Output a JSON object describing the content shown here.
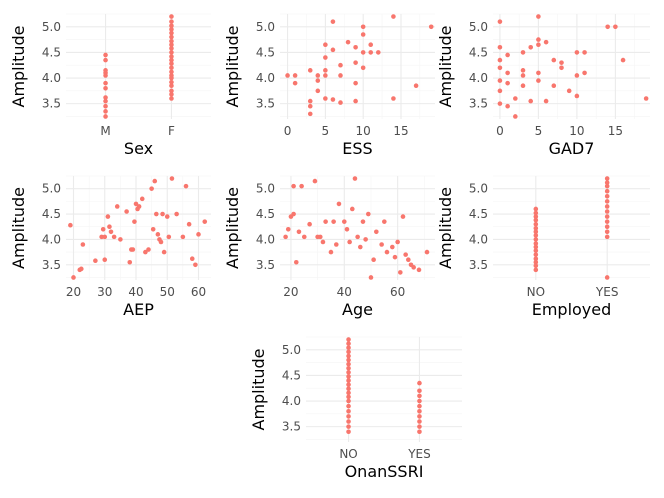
{
  "figure": {
    "point_color": "#F8766D",
    "grid_major_color": "#ebebeb",
    "grid_minor_color": "#f5f5f5",
    "background": "#ffffff"
  },
  "chart_data": [
    {
      "id": "sex",
      "type": "scatter",
      "xtype": "categorical",
      "xlabel": "Sex",
      "ylabel": "Amplitude",
      "categories": [
        "M",
        "F"
      ],
      "yticks": [
        "3.5",
        "4.0",
        "4.5",
        "5.0"
      ],
      "ylim": [
        3.2,
        5.25
      ],
      "points": [
        {
          "x": "M",
          "y": 3.25
        },
        {
          "x": "M",
          "y": 3.35
        },
        {
          "x": "M",
          "y": 3.45
        },
        {
          "x": "M",
          "y": 3.55
        },
        {
          "x": "M",
          "y": 3.62
        },
        {
          "x": "M",
          "y": 3.8
        },
        {
          "x": "M",
          "y": 3.9
        },
        {
          "x": "M",
          "y": 4.05
        },
        {
          "x": "M",
          "y": 4.1
        },
        {
          "x": "M",
          "y": 4.15
        },
        {
          "x": "M",
          "y": 4.35
        },
        {
          "x": "M",
          "y": 4.45
        },
        {
          "x": "F",
          "y": 3.6
        },
        {
          "x": "F",
          "y": 3.68
        },
        {
          "x": "F",
          "y": 3.75
        },
        {
          "x": "F",
          "y": 3.85
        },
        {
          "x": "F",
          "y": 3.92
        },
        {
          "x": "F",
          "y": 4.0
        },
        {
          "x": "F",
          "y": 4.05
        },
        {
          "x": "F",
          "y": 4.12
        },
        {
          "x": "F",
          "y": 4.2
        },
        {
          "x": "F",
          "y": 4.28
        },
        {
          "x": "F",
          "y": 4.35
        },
        {
          "x": "F",
          "y": 4.42
        },
        {
          "x": "F",
          "y": 4.5
        },
        {
          "x": "F",
          "y": 4.58
        },
        {
          "x": "F",
          "y": 4.65
        },
        {
          "x": "F",
          "y": 4.72
        },
        {
          "x": "F",
          "y": 4.8
        },
        {
          "x": "F",
          "y": 4.88
        },
        {
          "x": "F",
          "y": 4.95
        },
        {
          "x": "F",
          "y": 5.02
        },
        {
          "x": "F",
          "y": 5.1
        },
        {
          "x": "F",
          "y": 5.2
        }
      ]
    },
    {
      "id": "ess",
      "type": "scatter",
      "xtype": "numeric",
      "xlabel": "ESS",
      "ylabel": "Amplitude",
      "xlim": [
        -1,
        19.5
      ],
      "xticks": [
        0,
        5,
        10,
        15
      ],
      "yticks": [
        "3.5",
        "4.0",
        "4.5",
        "5.0"
      ],
      "ylim": [
        3.2,
        5.25
      ],
      "points": [
        {
          "x": 0,
          "y": 4.05
        },
        {
          "x": 1,
          "y": 4.05
        },
        {
          "x": 1,
          "y": 3.9
        },
        {
          "x": 3,
          "y": 3.55
        },
        {
          "x": 3,
          "y": 3.45
        },
        {
          "x": 3,
          "y": 3.3
        },
        {
          "x": 3,
          "y": 4.15
        },
        {
          "x": 4,
          "y": 4.05
        },
        {
          "x": 4,
          "y": 3.95
        },
        {
          "x": 4,
          "y": 3.75
        },
        {
          "x": 5,
          "y": 3.6
        },
        {
          "x": 5,
          "y": 4.05
        },
        {
          "x": 5,
          "y": 4.15
        },
        {
          "x": 5,
          "y": 4.4
        },
        {
          "x": 5,
          "y": 4.65
        },
        {
          "x": 6,
          "y": 5.1
        },
        {
          "x": 6,
          "y": 4.55
        },
        {
          "x": 6,
          "y": 3.58
        },
        {
          "x": 7,
          "y": 4.25
        },
        {
          "x": 7,
          "y": 4.05
        },
        {
          "x": 7,
          "y": 3.52
        },
        {
          "x": 8,
          "y": 4.7
        },
        {
          "x": 9,
          "y": 4.6
        },
        {
          "x": 9,
          "y": 3.9
        },
        {
          "x": 9,
          "y": 3.55
        },
        {
          "x": 9,
          "y": 4.3
        },
        {
          "x": 10,
          "y": 5.0
        },
        {
          "x": 10,
          "y": 4.85
        },
        {
          "x": 10,
          "y": 4.5
        },
        {
          "x": 10,
          "y": 4.2
        },
        {
          "x": 11,
          "y": 4.65
        },
        {
          "x": 11,
          "y": 4.5
        },
        {
          "x": 12,
          "y": 4.5
        },
        {
          "x": 14,
          "y": 5.2
        },
        {
          "x": 14,
          "y": 3.6
        },
        {
          "x": 17,
          "y": 3.85
        },
        {
          "x": 19,
          "y": 5.0
        }
      ]
    },
    {
      "id": "gad7",
      "type": "scatter",
      "xtype": "numeric",
      "xlabel": "GAD7",
      "ylabel": "Amplitude",
      "xlim": [
        -0.9,
        19.5
      ],
      "xticks": [
        0,
        5,
        10,
        15
      ],
      "yticks": [
        "3.5",
        "4.0",
        "4.5",
        "5.0"
      ],
      "ylim": [
        3.2,
        5.25
      ],
      "points": [
        {
          "x": 0,
          "y": 5.1
        },
        {
          "x": 0,
          "y": 4.6
        },
        {
          "x": 0,
          "y": 4.35
        },
        {
          "x": 0,
          "y": 4.2
        },
        {
          "x": 0,
          "y": 3.95
        },
        {
          "x": 0,
          "y": 3.75
        },
        {
          "x": 0,
          "y": 3.5
        },
        {
          "x": 1,
          "y": 4.45
        },
        {
          "x": 1,
          "y": 4.1
        },
        {
          "x": 1,
          "y": 3.9
        },
        {
          "x": 1,
          "y": 3.45
        },
        {
          "x": 2,
          "y": 3.25
        },
        {
          "x": 2,
          "y": 3.6
        },
        {
          "x": 3,
          "y": 4.5
        },
        {
          "x": 3,
          "y": 4.15
        },
        {
          "x": 3,
          "y": 4.05
        },
        {
          "x": 3,
          "y": 3.85
        },
        {
          "x": 4,
          "y": 4.6
        },
        {
          "x": 4,
          "y": 3.55
        },
        {
          "x": 5,
          "y": 5.2
        },
        {
          "x": 5,
          "y": 4.75
        },
        {
          "x": 5,
          "y": 4.65
        },
        {
          "x": 5,
          "y": 4.1
        },
        {
          "x": 5,
          "y": 3.95
        },
        {
          "x": 6,
          "y": 4.7
        },
        {
          "x": 6,
          "y": 3.55
        },
        {
          "x": 7,
          "y": 4.35
        },
        {
          "x": 7,
          "y": 3.85
        },
        {
          "x": 8,
          "y": 4.2
        },
        {
          "x": 8,
          "y": 4.3
        },
        {
          "x": 9,
          "y": 3.75
        },
        {
          "x": 10,
          "y": 4.5
        },
        {
          "x": 10,
          "y": 4.05
        },
        {
          "x": 10,
          "y": 3.65
        },
        {
          "x": 11,
          "y": 4.5
        },
        {
          "x": 11,
          "y": 4.1
        },
        {
          "x": 14,
          "y": 5.0
        },
        {
          "x": 15,
          "y": 5.0
        },
        {
          "x": 16,
          "y": 4.35
        },
        {
          "x": 19,
          "y": 3.6
        }
      ]
    },
    {
      "id": "aep",
      "type": "scatter",
      "xtype": "numeric",
      "xlabel": "AEP",
      "ylabel": "Amplitude",
      "xlim": [
        17.6,
        64
      ],
      "xticks": [
        20,
        30,
        40,
        50,
        60
      ],
      "yticks": [
        "3.5",
        "4.0",
        "4.5",
        "5.0"
      ],
      "ylim": [
        3.2,
        5.25
      ],
      "points": [
        {
          "x": 19,
          "y": 4.28
        },
        {
          "x": 20,
          "y": 3.25
        },
        {
          "x": 22,
          "y": 3.4
        },
        {
          "x": 22.5,
          "y": 3.42
        },
        {
          "x": 23,
          "y": 3.9
        },
        {
          "x": 27,
          "y": 3.58
        },
        {
          "x": 29,
          "y": 4.05
        },
        {
          "x": 29.5,
          "y": 4.2
        },
        {
          "x": 30,
          "y": 4.05
        },
        {
          "x": 30,
          "y": 3.6
        },
        {
          "x": 31,
          "y": 4.45
        },
        {
          "x": 31.5,
          "y": 4.25
        },
        {
          "x": 32,
          "y": 4.15
        },
        {
          "x": 33,
          "y": 4.05
        },
        {
          "x": 34,
          "y": 4.65
        },
        {
          "x": 35,
          "y": 4.0
        },
        {
          "x": 37,
          "y": 4.55
        },
        {
          "x": 38,
          "y": 3.55
        },
        {
          "x": 38.5,
          "y": 3.8
        },
        {
          "x": 39,
          "y": 3.8
        },
        {
          "x": 39.5,
          "y": 4.35
        },
        {
          "x": 40,
          "y": 4.7
        },
        {
          "x": 40.5,
          "y": 4.6
        },
        {
          "x": 41,
          "y": 4.65
        },
        {
          "x": 42,
          "y": 4.8
        },
        {
          "x": 43,
          "y": 3.75
        },
        {
          "x": 44,
          "y": 3.8
        },
        {
          "x": 45,
          "y": 5.0
        },
        {
          "x": 45.5,
          "y": 4.2
        },
        {
          "x": 46,
          "y": 5.15
        },
        {
          "x": 46.5,
          "y": 4.5
        },
        {
          "x": 47,
          "y": 4.1
        },
        {
          "x": 47.5,
          "y": 4.0
        },
        {
          "x": 48,
          "y": 3.95
        },
        {
          "x": 48.5,
          "y": 4.5
        },
        {
          "x": 49,
          "y": 3.75
        },
        {
          "x": 50,
          "y": 4.45
        },
        {
          "x": 50.5,
          "y": 4.05
        },
        {
          "x": 51.5,
          "y": 5.2
        },
        {
          "x": 53,
          "y": 4.5
        },
        {
          "x": 55,
          "y": 4.05
        },
        {
          "x": 56,
          "y": 5.05
        },
        {
          "x": 57,
          "y": 4.3
        },
        {
          "x": 58,
          "y": 3.62
        },
        {
          "x": 59,
          "y": 3.5
        },
        {
          "x": 60,
          "y": 4.1
        },
        {
          "x": 62,
          "y": 4.35
        }
      ]
    },
    {
      "id": "age",
      "type": "scatter",
      "xtype": "numeric",
      "xlabel": "Age",
      "ylabel": "Amplitude",
      "xlim": [
        15.9,
        74
      ],
      "xticks": [
        20,
        40,
        60
      ],
      "yticks": [
        "3.5",
        "4.0",
        "4.5",
        "5.0"
      ],
      "ylim": [
        3.2,
        5.25
      ],
      "points": [
        {
          "x": 18,
          "y": 4.05
        },
        {
          "x": 19,
          "y": 4.2
        },
        {
          "x": 20,
          "y": 4.45
        },
        {
          "x": 21,
          "y": 4.5
        },
        {
          "x": 21,
          "y": 5.05
        },
        {
          "x": 22,
          "y": 3.55
        },
        {
          "x": 23,
          "y": 4.15
        },
        {
          "x": 24,
          "y": 5.05
        },
        {
          "x": 25,
          "y": 4.05
        },
        {
          "x": 27,
          "y": 4.3
        },
        {
          "x": 29,
          "y": 5.15
        },
        {
          "x": 30,
          "y": 4.05
        },
        {
          "x": 31,
          "y": 4.05
        },
        {
          "x": 32,
          "y": 3.95
        },
        {
          "x": 33,
          "y": 4.35
        },
        {
          "x": 35,
          "y": 3.75
        },
        {
          "x": 36,
          "y": 4.35
        },
        {
          "x": 37,
          "y": 3.9
        },
        {
          "x": 38,
          "y": 4.7
        },
        {
          "x": 40,
          "y": 4.35
        },
        {
          "x": 41,
          "y": 4.2
        },
        {
          "x": 42,
          "y": 3.95
        },
        {
          "x": 43,
          "y": 4.6
        },
        {
          "x": 44,
          "y": 5.2
        },
        {
          "x": 45,
          "y": 4.05
        },
        {
          "x": 46,
          "y": 3.85
        },
        {
          "x": 47,
          "y": 4.35
        },
        {
          "x": 48,
          "y": 4.0
        },
        {
          "x": 49,
          "y": 4.5
        },
        {
          "x": 50,
          "y": 3.25
        },
        {
          "x": 51,
          "y": 3.6
        },
        {
          "x": 52,
          "y": 4.15
        },
        {
          "x": 54,
          "y": 3.9
        },
        {
          "x": 55,
          "y": 4.35
        },
        {
          "x": 56,
          "y": 3.75
        },
        {
          "x": 58,
          "y": 3.85
        },
        {
          "x": 59,
          "y": 3.65
        },
        {
          "x": 60,
          "y": 3.95
        },
        {
          "x": 61,
          "y": 3.35
        },
        {
          "x": 62,
          "y": 4.45
        },
        {
          "x": 63,
          "y": 3.7
        },
        {
          "x": 64,
          "y": 3.6
        },
        {
          "x": 65,
          "y": 3.5
        },
        {
          "x": 66,
          "y": 3.45
        },
        {
          "x": 68,
          "y": 3.4
        },
        {
          "x": 71,
          "y": 3.75
        }
      ]
    },
    {
      "id": "employed",
      "type": "scatter",
      "xtype": "categorical",
      "xlabel": "Employed",
      "ylabel": "Amplitude",
      "categories": [
        "NO",
        "YES"
      ],
      "yticks": [
        "3.5",
        "4.0",
        "4.5",
        "5.0"
      ],
      "ylim": [
        3.2,
        5.25
      ],
      "points": [
        {
          "x": "NO",
          "y": 3.4
        },
        {
          "x": "NO",
          "y": 3.48
        },
        {
          "x": "NO",
          "y": 3.55
        },
        {
          "x": "NO",
          "y": 3.62
        },
        {
          "x": "NO",
          "y": 3.7
        },
        {
          "x": "NO",
          "y": 3.78
        },
        {
          "x": "NO",
          "y": 3.85
        },
        {
          "x": "NO",
          "y": 3.92
        },
        {
          "x": "NO",
          "y": 4.0
        },
        {
          "x": "NO",
          "y": 4.08
        },
        {
          "x": "NO",
          "y": 4.15
        },
        {
          "x": "NO",
          "y": 4.22
        },
        {
          "x": "NO",
          "y": 4.3
        },
        {
          "x": "NO",
          "y": 4.38
        },
        {
          "x": "NO",
          "y": 4.45
        },
        {
          "x": "NO",
          "y": 4.52
        },
        {
          "x": "NO",
          "y": 4.6
        },
        {
          "x": "YES",
          "y": 3.25
        },
        {
          "x": "YES",
          "y": 4.05
        },
        {
          "x": "YES",
          "y": 4.15
        },
        {
          "x": "YES",
          "y": 4.25
        },
        {
          "x": "YES",
          "y": 4.35
        },
        {
          "x": "YES",
          "y": 4.45
        },
        {
          "x": "YES",
          "y": 4.55
        },
        {
          "x": "YES",
          "y": 4.65
        },
        {
          "x": "YES",
          "y": 4.75
        },
        {
          "x": "YES",
          "y": 4.85
        },
        {
          "x": "YES",
          "y": 4.95
        },
        {
          "x": "YES",
          "y": 5.05
        },
        {
          "x": "YES",
          "y": 5.12
        },
        {
          "x": "YES",
          "y": 5.2
        }
      ]
    },
    {
      "id": "onanssri",
      "type": "scatter",
      "xtype": "categorical",
      "xlabel": "OnanSSRI",
      "ylabel": "Amplitude",
      "categories": [
        "NO",
        "YES"
      ],
      "yticks": [
        "3.5",
        "4.0",
        "4.5",
        "5.0"
      ],
      "ylim": [
        3.2,
        5.25
      ],
      "points": [
        {
          "x": "NO",
          "y": 3.4
        },
        {
          "x": "NO",
          "y": 3.5
        },
        {
          "x": "NO",
          "y": 3.6
        },
        {
          "x": "NO",
          "y": 3.7
        },
        {
          "x": "NO",
          "y": 3.8
        },
        {
          "x": "NO",
          "y": 3.9
        },
        {
          "x": "NO",
          "y": 4.0
        },
        {
          "x": "NO",
          "y": 4.08
        },
        {
          "x": "NO",
          "y": 4.16
        },
        {
          "x": "NO",
          "y": 4.24
        },
        {
          "x": "NO",
          "y": 4.32
        },
        {
          "x": "NO",
          "y": 4.4
        },
        {
          "x": "NO",
          "y": 4.48
        },
        {
          "x": "NO",
          "y": 4.56
        },
        {
          "x": "NO",
          "y": 4.64
        },
        {
          "x": "NO",
          "y": 4.72
        },
        {
          "x": "NO",
          "y": 4.8
        },
        {
          "x": "NO",
          "y": 4.88
        },
        {
          "x": "NO",
          "y": 4.96
        },
        {
          "x": "NO",
          "y": 5.04
        },
        {
          "x": "NO",
          "y": 5.12
        },
        {
          "x": "NO",
          "y": 5.2
        },
        {
          "x": "YES",
          "y": 3.4
        },
        {
          "x": "YES",
          "y": 3.5
        },
        {
          "x": "YES",
          "y": 3.6
        },
        {
          "x": "YES",
          "y": 3.7
        },
        {
          "x": "YES",
          "y": 3.8
        },
        {
          "x": "YES",
          "y": 3.9
        },
        {
          "x": "YES",
          "y": 4.0
        },
        {
          "x": "YES",
          "y": 4.1
        },
        {
          "x": "YES",
          "y": 4.2
        },
        {
          "x": "YES",
          "y": 4.35
        }
      ]
    }
  ]
}
